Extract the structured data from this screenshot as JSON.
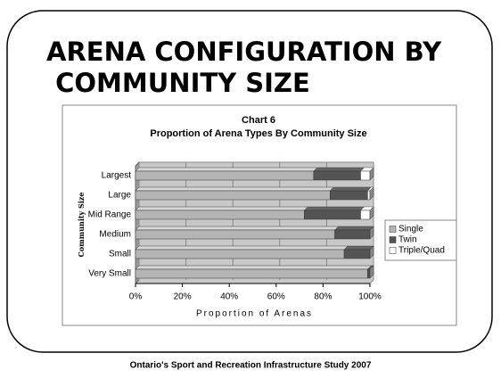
{
  "slide_title": "ARENA CONFIGURATION BY COMMUNITY SIZE",
  "footer": "Ontario's Sport and Recreation Infrastructure Study 2007",
  "chart_data": {
    "type": "stacked_barh",
    "title": "Chart 6",
    "subtitle": "Proportion of Arena Types By Community Size",
    "x_label": "Proportion of Arenas",
    "y_label": "Community Size",
    "categories": [
      "Largest",
      "Large",
      "Mid Range",
      "Medium",
      "Small",
      "Very Small"
    ],
    "series": [
      {
        "name": "Single",
        "color": "#b4b4b4",
        "values": [
          76,
          83,
          72,
          85,
          89,
          99
        ]
      },
      {
        "name": "Twin",
        "color": "#545454",
        "values": [
          20,
          16,
          24,
          15,
          11,
          1
        ]
      },
      {
        "name": "Triple/Quad",
        "color": "#ffffff",
        "values": [
          4,
          1,
          4,
          0,
          0,
          0
        ]
      }
    ],
    "xlim": [
      0,
      100
    ],
    "xticks": [
      {
        "value": 0,
        "label": "0%"
      },
      {
        "value": 20,
        "label": "20%"
      },
      {
        "value": 40,
        "label": "40%"
      },
      {
        "value": 60,
        "label": "60%"
      },
      {
        "value": 80,
        "label": "80%"
      },
      {
        "value": 100,
        "label": "100%"
      }
    ],
    "grid": true,
    "legend": "right"
  }
}
